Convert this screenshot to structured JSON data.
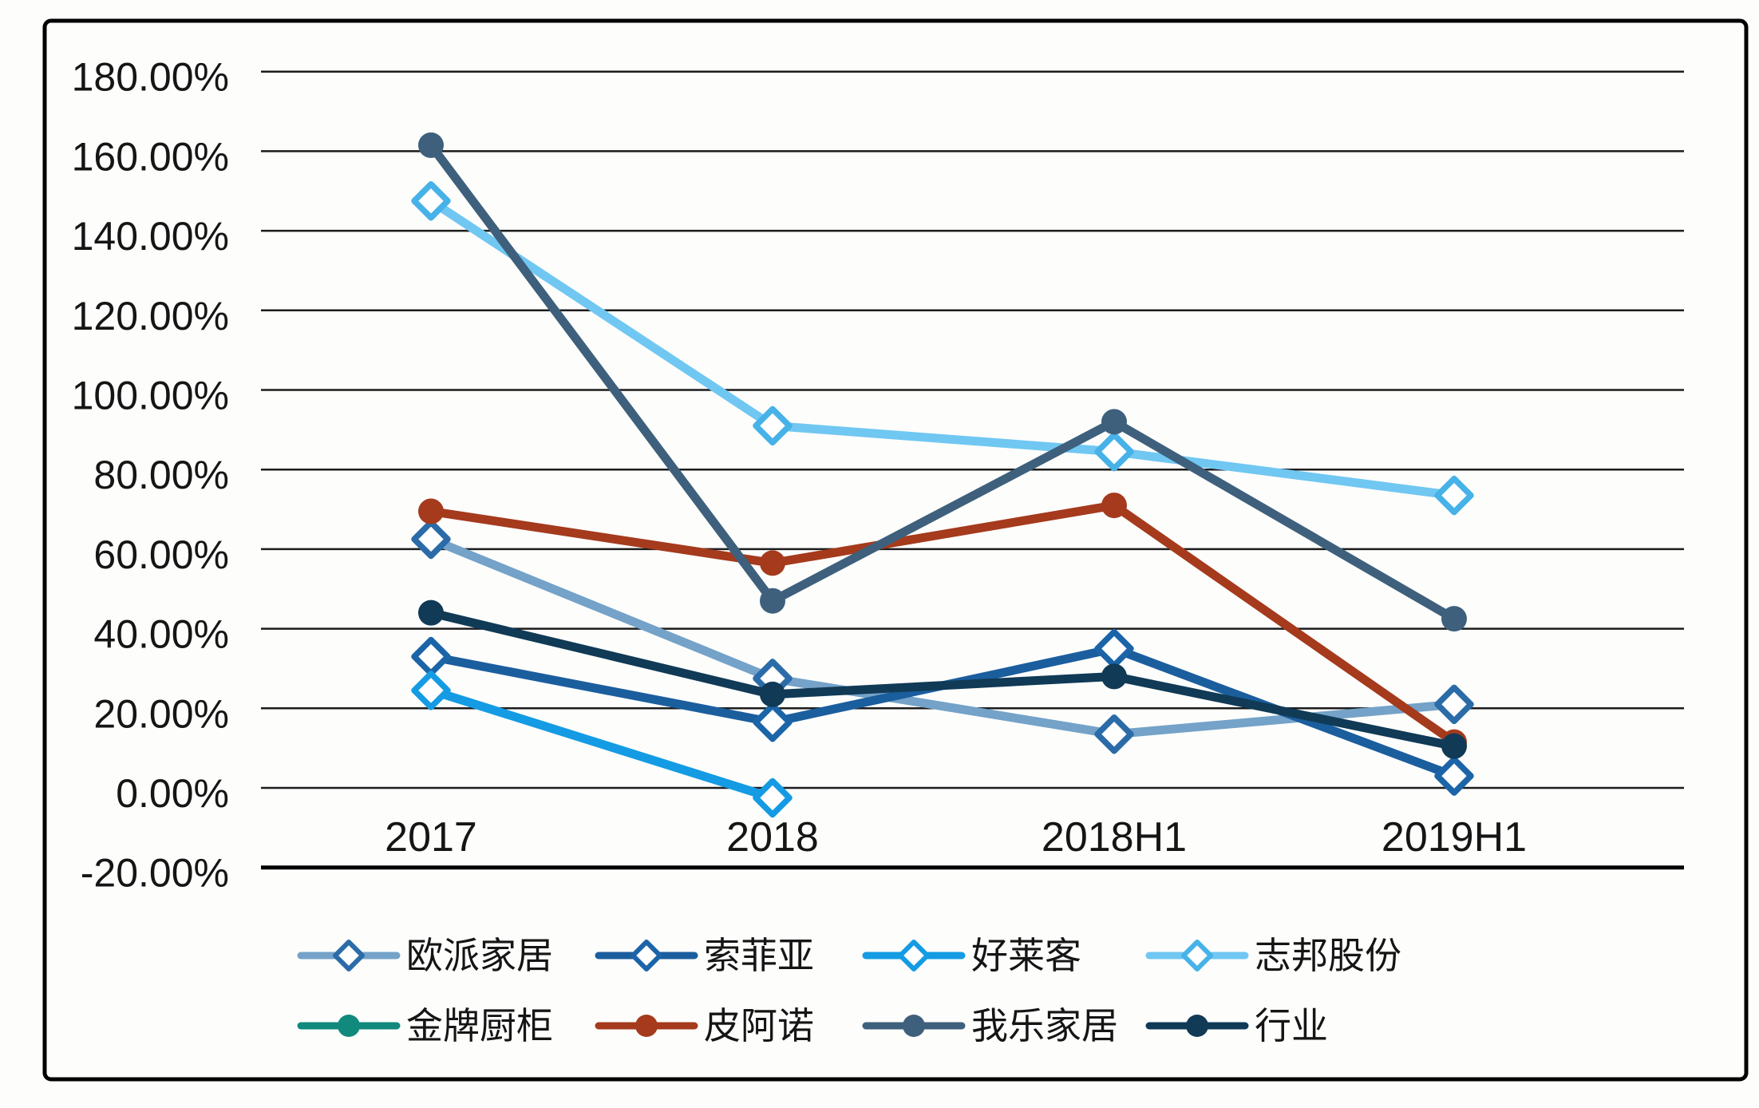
{
  "chart_data": {
    "type": "line",
    "title": "",
    "categories": [
      "2017",
      "2018",
      "2018H1",
      "2019H1"
    ],
    "y_axis": {
      "unit": "%",
      "min": -20,
      "max": 180,
      "step": 20,
      "ticks": [
        "180.00%",
        "160.00%",
        "140.00%",
        "120.00%",
        "100.00%",
        "80.00%",
        "60.00%",
        "40.00%",
        "20.00%",
        "0.00%",
        "-20.00%"
      ]
    },
    "grid": true,
    "legend_position": "bottom",
    "colors": {
      "grid_line": "#1c1c1c",
      "axis_line": "#000000",
      "frame_border": "#000000",
      "background": "#fdfdfc",
      "text": "#151515"
    },
    "series": [
      {
        "key": "oppein",
        "name": "欧派家居",
        "marker": "diamond",
        "line_color": "#74A2C8",
        "marker_color": "#2B6CA8",
        "values": [
          62.5,
          27.5,
          13.5,
          21
        ]
      },
      {
        "key": "suofeiya",
        "name": "索菲亚",
        "marker": "diamond",
        "line_color": "#1B5E9E",
        "marker_color": "#1B64A8",
        "values": [
          33,
          16.5,
          35,
          3
        ]
      },
      {
        "key": "holike",
        "name": "好莱客",
        "marker": "diamond",
        "line_color": "#149BE4",
        "marker_color": "#149BE4",
        "values": [
          24.5,
          -2.5,
          null,
          null
        ]
      },
      {
        "key": "zbom",
        "name": "志邦股份",
        "marker": "diamond",
        "line_color": "#70C7F2",
        "marker_color": "#46B2E8",
        "values": [
          147.5,
          91,
          84.5,
          73.5
        ]
      },
      {
        "key": "goldenhome",
        "name": "金牌厨柜",
        "marker": "circle",
        "line_color": "#11897C",
        "marker_color": "#11897C",
        "values": [
          null,
          null,
          null,
          null
        ]
      },
      {
        "key": "piano",
        "name": "皮阿诺",
        "marker": "circle",
        "line_color": "#A53A1D",
        "marker_color": "#A53A1D",
        "values": [
          69.5,
          56.5,
          71,
          11.5
        ]
      },
      {
        "key": "olohome",
        "name": "我乐家居",
        "marker": "circle",
        "line_color": "#3E607C",
        "marker_color": "#3E607C",
        "values": [
          161.5,
          47,
          92,
          42.5
        ]
      },
      {
        "key": "industry",
        "name": "行业",
        "marker": "circle",
        "line_color": "#103A56",
        "marker_color": "#103A56",
        "values": [
          44,
          23.5,
          28,
          10.5
        ]
      }
    ]
  }
}
